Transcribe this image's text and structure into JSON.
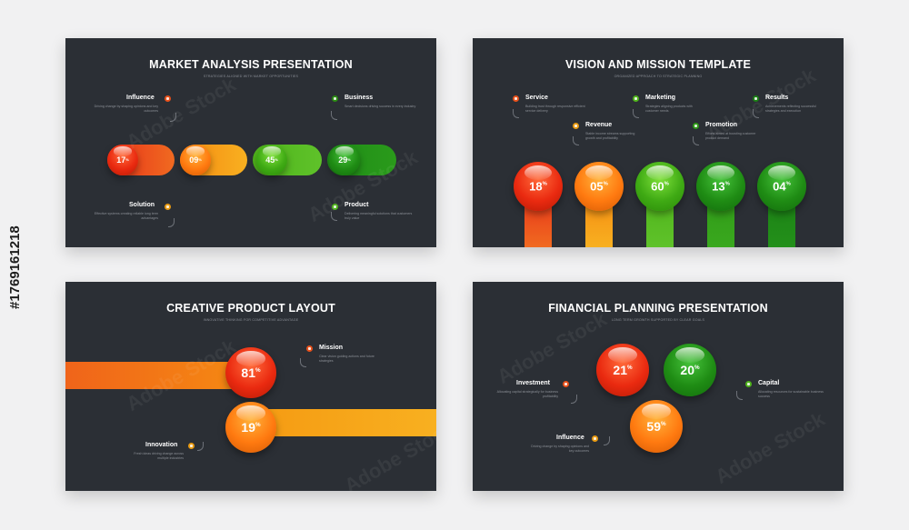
{
  "watermark": {
    "brand": "Adobe Stock",
    "id_text": "#1769161218"
  },
  "slide1": {
    "title": "MARKET ANALYSIS PRESENTATION",
    "subtitle": "STRATEGIES ALIGNED WITH MARKET OPPORTUNITIES",
    "items": [
      {
        "label": "Influence",
        "desc": "Driving change by shaping opinions and key outcomes"
      },
      {
        "label": "Business",
        "desc": "Smart decisions driving success in every industry"
      },
      {
        "label": "Solution",
        "desc": "Effective systems creating reliable long term advantages"
      },
      {
        "label": "Product",
        "desc": "Delivering meaningful solutions that customers truly value"
      }
    ],
    "pills": [
      {
        "value": "17",
        "color": "#e8321a"
      },
      {
        "value": "09",
        "color": "#f59a12"
      },
      {
        "value": "45",
        "color": "#4fb41b"
      },
      {
        "value": "29",
        "color": "#1f8d18"
      }
    ]
  },
  "slide2": {
    "title": "VISION AND MISSION TEMPLATE",
    "subtitle": "ORGANIZED APPROACH TO STRATEGIC PLANNING",
    "items": [
      {
        "label": "Service",
        "desc": "Building trust through responsive efficient service delivery"
      },
      {
        "label": "Revenue",
        "desc": "Stable income streams supporting growth and profitability"
      },
      {
        "label": "Marketing",
        "desc": "Strategies aligning products with customer needs"
      },
      {
        "label": "Promotion",
        "desc": "Efforts aimed at boosting customer product demand"
      },
      {
        "label": "Results",
        "desc": "Achievements reflecting successful strategies and execution"
      }
    ],
    "balls": [
      {
        "value": "18",
        "color": "#e8321a"
      },
      {
        "value": "05",
        "color": "#f58a12"
      },
      {
        "value": "60",
        "color": "#4fb41b"
      },
      {
        "value": "13",
        "color": "#2f9a18"
      },
      {
        "value": "04",
        "color": "#1b8015"
      }
    ]
  },
  "slide3": {
    "title": "CREATIVE PRODUCT LAYOUT",
    "subtitle": "INNOVATIVE THINKING FOR COMPETITIVE ADVANTAGE",
    "items": [
      {
        "label": "Mission",
        "desc": "Clear vision guiding actions and future strategies"
      },
      {
        "label": "Innovation",
        "desc": "Fresh ideas driving change across multiple industries"
      }
    ],
    "balls": [
      {
        "value": "81",
        "color": "#e8321a"
      },
      {
        "value": "19",
        "color": "#f58a12"
      }
    ]
  },
  "slide4": {
    "title": "FINANCIAL PLANNING PRESENTATION",
    "subtitle": "LONG TERM GROWTH SUPPORTED BY CLEAR GOALS",
    "items": [
      {
        "label": "Investment",
        "desc": "Allocating capital strategically for business profitability"
      },
      {
        "label": "Capital",
        "desc": "Allocating resources for sustainable business success"
      },
      {
        "label": "Influence",
        "desc": "Driving change by shaping opinions and key outcomes"
      }
    ],
    "balls": [
      {
        "value": "21",
        "color": "#e8321a"
      },
      {
        "value": "20",
        "color": "#1f8d18"
      },
      {
        "value": "59",
        "color": "#f58a12"
      }
    ]
  },
  "percent_symbol": "%"
}
